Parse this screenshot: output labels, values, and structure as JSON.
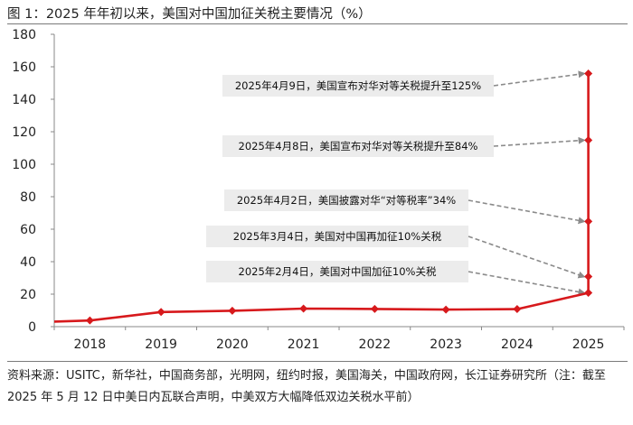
{
  "title": "图 1：2025 年年初以来，美国对中国加征关税主要情况（%）",
  "source": "资料来源：USITC，新华社，中国商务部，光明网，纽约时报，美国海关，中国政府网，长江证券研究所（注：截至 2025 年 5 月 12 日中美日内瓦联合声明，中美双方大幅降低双边关税水平前）",
  "chart_data": {
    "type": "line",
    "title": "图 1：2025 年年初以来，美国对中国加征关税主要情况（%）",
    "xlabel": "",
    "ylabel": "%",
    "ylim": [
      0,
      180
    ],
    "yticks": [
      0,
      20,
      40,
      60,
      80,
      100,
      120,
      140,
      160,
      180
    ],
    "x_tick_labels": [
      "2018",
      "2019",
      "2020",
      "2021",
      "2022",
      "2023",
      "2024",
      "2025"
    ],
    "line_color": "#d7191c",
    "series": [
      {
        "name": "美国对中国加征关税",
        "points": [
          {
            "x": 2017.5,
            "y": 3.1
          },
          {
            "x": 2018,
            "y": 3.8,
            "marker": true
          },
          {
            "x": 2019,
            "y": 9.0,
            "marker": true
          },
          {
            "x": 2020,
            "y": 9.8,
            "marker": true
          },
          {
            "x": 2021,
            "y": 11.1,
            "marker": true
          },
          {
            "x": 2022,
            "y": 10.9,
            "marker": true
          },
          {
            "x": 2023,
            "y": 10.5,
            "marker": true
          },
          {
            "x": 2024,
            "y": 10.8,
            "marker": true
          },
          {
            "x": 2025,
            "y": 20.8,
            "marker": true
          },
          {
            "x": 2025,
            "y": 30.8,
            "marker": true
          },
          {
            "x": 2025,
            "y": 64.8,
            "marker": true
          },
          {
            "x": 2025,
            "y": 114.8,
            "marker": true
          },
          {
            "x": 2025,
            "y": 155.8,
            "marker": true
          }
        ]
      }
    ],
    "annotations": [
      {
        "text": "2025年4月9日，美国宣布对华对等关税提升至125%",
        "target_y": 155.8
      },
      {
        "text": "2025年4月8日，美国宣布对华对等关税提升至84%",
        "target_y": 114.8
      },
      {
        "text": "2025年4月2日，美国披露对华“对等税率”34%",
        "target_y": 64.8
      },
      {
        "text": "2025年3月4日，美国对中国再加征10%关税",
        "target_y": 30.8
      },
      {
        "text": "2025年2月4日，美国对中国加征10%关税",
        "target_y": 20.8
      }
    ]
  }
}
